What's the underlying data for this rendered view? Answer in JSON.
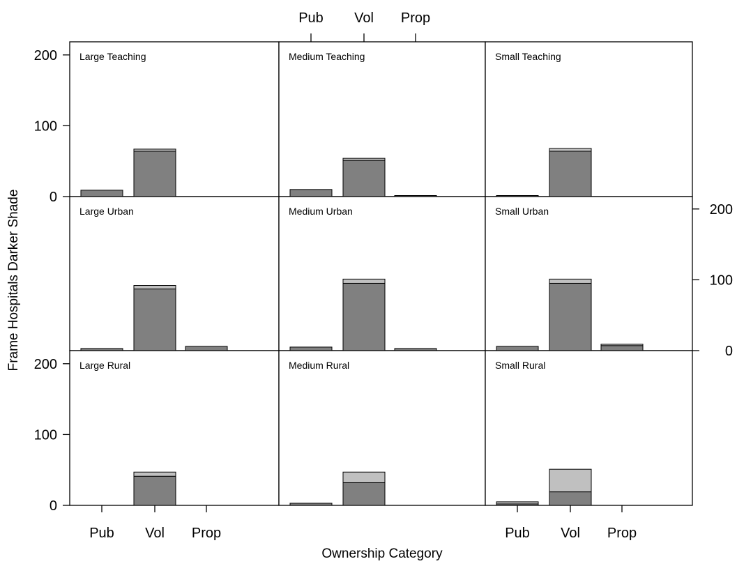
{
  "chart_data": {
    "type": "bar",
    "stacked": true,
    "layout": "3x3 trellis",
    "xlabel": "Ownership Category",
    "ylabel": "Frame Hospitals Darker Shade",
    "categories": [
      "Pub",
      "Vol",
      "Prop"
    ],
    "ylim": [
      0,
      220
    ],
    "yticks": [
      0,
      100,
      200
    ],
    "colors": {
      "dark": "#808080",
      "light": "#c0c0c0",
      "frame": "#000000"
    },
    "panels": [
      {
        "label": "Large Teaching",
        "dark": [
          9,
          64,
          0
        ],
        "light": [
          0,
          3,
          0
        ]
      },
      {
        "label": "Medium Teaching",
        "dark": [
          10,
          51,
          1
        ],
        "light": [
          0,
          3,
          0
        ]
      },
      {
        "label": "Small Teaching",
        "dark": [
          1,
          64,
          0
        ],
        "light": [
          0,
          4,
          0
        ]
      },
      {
        "label": "Large Urban",
        "dark": [
          3,
          87,
          6
        ],
        "light": [
          0,
          5,
          0
        ]
      },
      {
        "label": "Medium Urban",
        "dark": [
          5,
          95,
          3
        ],
        "light": [
          0,
          6,
          0
        ]
      },
      {
        "label": "Small Urban",
        "dark": [
          6,
          95,
          7
        ],
        "light": [
          0,
          6,
          2
        ]
      },
      {
        "label": "Large Rural",
        "dark": [
          0,
          41,
          0
        ],
        "light": [
          0,
          6,
          0
        ]
      },
      {
        "label": "Medium Rural",
        "dark": [
          3,
          32,
          0
        ],
        "light": [
          0,
          15,
          0
        ]
      },
      {
        "label": "Small Rural",
        "dark": [
          2,
          19,
          0
        ],
        "light": [
          3,
          32,
          0
        ]
      }
    ]
  }
}
